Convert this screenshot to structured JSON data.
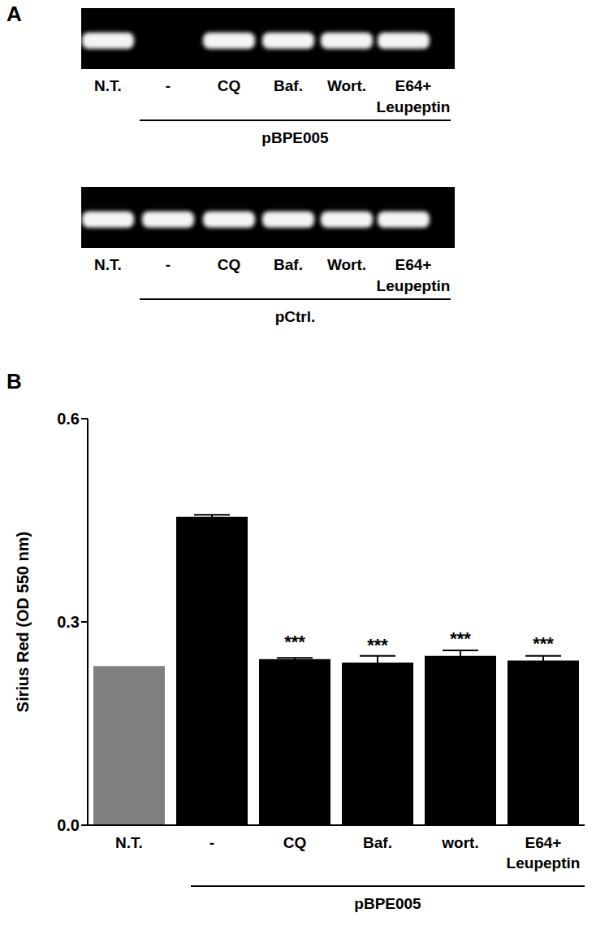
{
  "panel_a": {
    "label": "A",
    "gels": [
      {
        "lanes": [
          "N.T.",
          "-",
          "CQ",
          "Baf.",
          "Wort.",
          "E64+\nLeupeptin"
        ],
        "bands": [
          true,
          false,
          true,
          true,
          true,
          true
        ],
        "group": {
          "label": "pBPE005",
          "from": "-",
          "to": "E64+\nLeupeptin"
        }
      },
      {
        "lanes": [
          "N.T.",
          "-",
          "CQ",
          "Baf.",
          "Wort.",
          "E64+\nLeupeptin"
        ],
        "bands": [
          true,
          true,
          true,
          true,
          true,
          true
        ],
        "group": {
          "label": "pCtrl.",
          "from": "-",
          "to": "E64+\nLeupeptin"
        }
      }
    ]
  },
  "chart_data": {
    "type": "bar",
    "panel_label": "B",
    "y_label": "Sirius Red (OD 550 nm)",
    "categories": [
      "N.T.",
      "-",
      "CQ",
      "Baf.",
      "wort.",
      "E64+\nLeupeptin"
    ],
    "values": [
      0.235,
      0.455,
      0.245,
      0.24,
      0.25,
      0.243
    ],
    "errors": [
      0,
      0.003,
      0.002,
      0.01,
      0.008,
      0.007
    ],
    "significance": [
      null,
      null,
      "***",
      "***",
      "***",
      "***"
    ],
    "colors": [
      "#808080",
      "#000000",
      "#000000",
      "#000000",
      "#000000",
      "#000000"
    ],
    "ylim": [
      0,
      0.6
    ],
    "yticks": [
      {
        "value": 0,
        "label": "0.0"
      },
      0.3,
      0.6
    ],
    "grid": false,
    "group": {
      "label": "pBPE005",
      "from": "-",
      "to": "E64+\nLeupeptin"
    }
  }
}
